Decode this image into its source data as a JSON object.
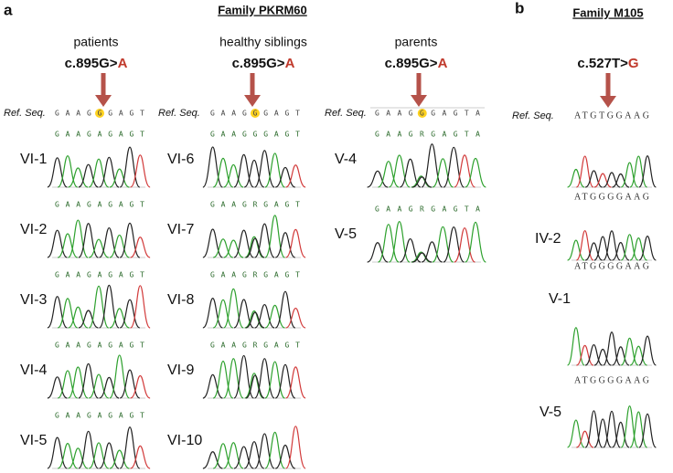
{
  "panel_a": {
    "label": "a",
    "title": "Family PKRM60",
    "groups": [
      {
        "heading": "patients",
        "mutation": "c.895G>",
        "alt": "A",
        "ref_label": "Ref. Seq.",
        "ref_seq": "GAAGGGAGT",
        "samples": [
          {
            "id": "VI-1",
            "seq": "GAAGAGAGT"
          },
          {
            "id": "VI-2",
            "seq": "GAAGAGAGT"
          },
          {
            "id": "VI-3",
            "seq": "GAAGAGAGT"
          },
          {
            "id": "VI-4",
            "seq": "GAAGAGAGT"
          },
          {
            "id": "VI-5",
            "seq": "GAAGAGAGT"
          }
        ]
      },
      {
        "heading": "healthy siblings",
        "mutation": "c.895G>",
        "alt": "A",
        "ref_label": "Ref. Seq.",
        "ref_seq": "GAAGGGAGT",
        "samples": [
          {
            "id": "VI-6",
            "seq": "GAAGGGAGT"
          },
          {
            "id": "VI-7",
            "seq": "GAAGRGAGT"
          },
          {
            "id": "VI-8",
            "seq": "GAAGRGAGT"
          },
          {
            "id": "VI-9",
            "seq": "GAAGRGAGT"
          },
          {
            "id": "VI-10"
          }
        ]
      },
      {
        "heading": "parents",
        "mutation": "c.895G>",
        "alt": "A",
        "ref_label": "Ref. Seq.",
        "ref_seq": "GAAGGGAGTA",
        "samples": [
          {
            "id": "V-4",
            "seq": "GAAGRGAGTA"
          },
          {
            "id": "V-5",
            "seq": "GAAGRGAGTA"
          }
        ]
      }
    ]
  },
  "panel_b": {
    "label": "b",
    "title": "Family M105",
    "mutation": "c.527T>",
    "alt": "G",
    "ref_label": "Ref. Seq.",
    "ref_seq": "ATGTGGAAG",
    "samples": [
      {
        "id": "IV-2",
        "seq": "ATGGGGAAG"
      },
      {
        "id": "V-1",
        "seq": "ATGGGGAAG"
      },
      {
        "id": "V-5",
        "seq": "ATGGGGAAG"
      }
    ]
  }
}
